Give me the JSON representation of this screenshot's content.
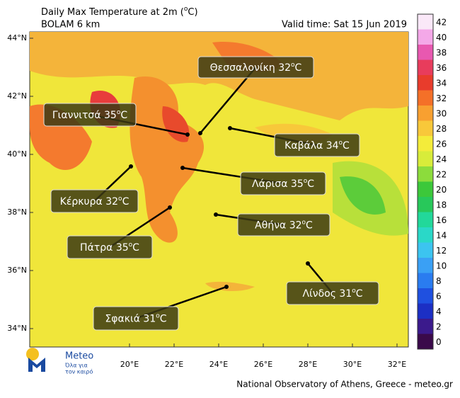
{
  "header": {
    "title": [
      "Daily Max Temperature at 2m (",
      "o",
      "C)"
    ],
    "subtitle": "BOLAM 6 km",
    "valid_time": "Valid time: Sat 15 Jun 2019"
  },
  "map": {
    "lat_ticks": [
      {
        "value": 44,
        "label": "44°N"
      },
      {
        "value": 42,
        "label": "42°N"
      },
      {
        "value": 40,
        "label": "40°N"
      },
      {
        "value": 38,
        "label": "38°N"
      },
      {
        "value": 36,
        "label": "36°N"
      },
      {
        "value": 34,
        "label": "34°N"
      }
    ],
    "lon_ticks": [
      {
        "value": 20,
        "label": "20°E"
      },
      {
        "value": 22,
        "label": "22°E"
      },
      {
        "value": 24,
        "label": "24°E"
      },
      {
        "value": 26,
        "label": "26°E"
      },
      {
        "value": 28,
        "label": "28°E"
      },
      {
        "value": 30,
        "label": "30°E"
      },
      {
        "value": 32,
        "label": "32°E"
      }
    ],
    "unit": [
      "o",
      "C"
    ],
    "callouts": [
      {
        "name": "Θεσσαλονίκη",
        "temperature": 32
      },
      {
        "name": "Γιαννιτσά",
        "temperature": 35
      },
      {
        "name": "Καβάλα",
        "temperature": 34
      },
      {
        "name": "Λάρισα",
        "temperature": 35
      },
      {
        "name": "Κέρκυρα",
        "temperature": 32
      },
      {
        "name": "Αθήνα",
        "temperature": 32
      },
      {
        "name": "Πάτρα",
        "temperature": 35
      },
      {
        "name": "Λίνδος",
        "temperature": 31
      },
      {
        "name": "Σφακιά",
        "temperature": 31
      }
    ]
  },
  "colorbar": {
    "levels": [
      0,
      2,
      4,
      6,
      8,
      10,
      12,
      14,
      16,
      18,
      20,
      22,
      24,
      26,
      28,
      30,
      32,
      34,
      36,
      38,
      40,
      42
    ],
    "colors": [
      "#3a0a4a",
      "#3b1a8c",
      "#1c2fc4",
      "#1f50e0",
      "#2a7cf0",
      "#3aa0f5",
      "#3cc4f0",
      "#2ad8c8",
      "#22d89a",
      "#28c85a",
      "#3cc83a",
      "#8cdc3c",
      "#d8ec3a",
      "#f4ec3a",
      "#f8c83a",
      "#f8a030",
      "#f47028",
      "#e83c2c",
      "#e83c5c",
      "#e858b0",
      "#f4a8e8",
      "#fae8f8"
    ]
  },
  "footer": {
    "logo": "Meteo",
    "tagline": [
      "Όλα για",
      "τον καιρό"
    ],
    "credit": "National Observatory of Athens, Greece - meteo.gr"
  }
}
